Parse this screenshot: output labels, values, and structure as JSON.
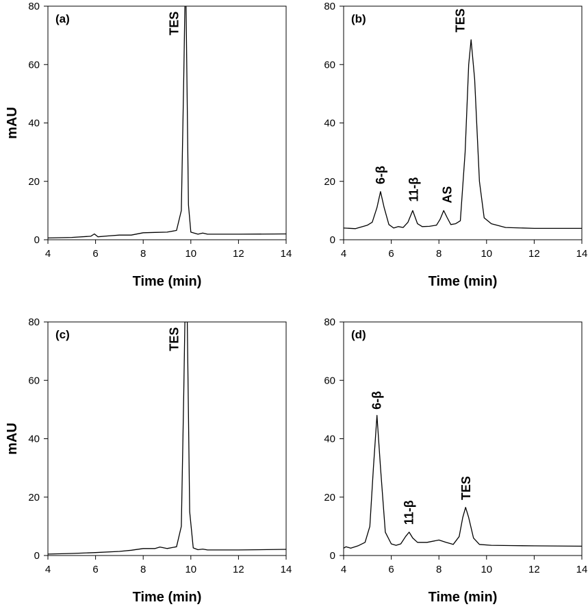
{
  "chart_data": [
    {
      "type": "line",
      "panel_label": "(a)",
      "xlabel": "Time (min)",
      "ylabel": "mAU",
      "xlim": [
        4,
        14
      ],
      "ylim": [
        0,
        80
      ],
      "xticks": [
        4,
        6,
        8,
        10,
        12,
        14
      ],
      "yticks": [
        0,
        20,
        40,
        60,
        80
      ],
      "series": [
        {
          "x": [
            4,
            5,
            5.8,
            5.95,
            6.1,
            6.5,
            7,
            7.5,
            8,
            8.5,
            9,
            9.4,
            9.6,
            9.7,
            9.75,
            9.8,
            9.9,
            10,
            10.3,
            10.5,
            10.7,
            12,
            14
          ],
          "y": [
            0.6,
            0.8,
            1.2,
            2.0,
            1.0,
            1.3,
            1.6,
            1.6,
            2.4,
            2.5,
            2.6,
            3.2,
            10,
            55,
            80,
            80,
            12,
            2.6,
            1.9,
            2.3,
            1.9,
            1.9,
            2.0
          ]
        }
      ],
      "annotations": [
        {
          "text": "TES",
          "x": 9.3,
          "y": 70
        }
      ]
    },
    {
      "type": "line",
      "panel_label": "(b)",
      "xlabel": "Time (min)",
      "ylabel": "",
      "xlim": [
        4,
        14
      ],
      "ylim": [
        0,
        80
      ],
      "xticks": [
        4,
        6,
        8,
        10,
        12,
        14
      ],
      "yticks": [
        0,
        20,
        40,
        60,
        80
      ],
      "series": [
        {
          "x": [
            4,
            4.5,
            5,
            5.2,
            5.4,
            5.55,
            5.7,
            5.9,
            6.1,
            6.3,
            6.5,
            6.7,
            6.9,
            7.1,
            7.3,
            7.6,
            7.9,
            8.05,
            8.2,
            8.35,
            8.5,
            8.7,
            8.9,
            9.1,
            9.25,
            9.35,
            9.5,
            9.7,
            9.9,
            10.2,
            10.8,
            12,
            14
          ],
          "y": [
            4.0,
            3.8,
            5.0,
            6.0,
            11,
            16.5,
            11,
            5.2,
            4.0,
            4.5,
            4.2,
            6.0,
            10,
            5.5,
            4.5,
            4.6,
            5.0,
            7.0,
            10,
            7.5,
            5.2,
            5.5,
            6.5,
            30,
            60,
            68.5,
            55,
            20,
            7.5,
            5.5,
            4.2,
            3.9,
            3.9
          ]
        }
      ],
      "annotations": [
        {
          "text": "6-β",
          "x": 5.55,
          "y": 19
        },
        {
          "text": "11-β",
          "x": 6.95,
          "y": 13
        },
        {
          "text": "AS",
          "x": 8.35,
          "y": 12.5
        },
        {
          "text": "TES",
          "x": 8.9,
          "y": 71
        }
      ]
    },
    {
      "type": "line",
      "panel_label": "(c)",
      "xlabel": "Time (min)",
      "ylabel": "mAU",
      "xlim": [
        4,
        14
      ],
      "ylim": [
        0,
        80
      ],
      "xticks": [
        4,
        6,
        8,
        10,
        12,
        14
      ],
      "yticks": [
        0,
        20,
        40,
        60,
        80
      ],
      "series": [
        {
          "x": [
            4,
            5,
            6,
            7,
            7.5,
            8,
            8.5,
            8.7,
            9,
            9.4,
            9.6,
            9.7,
            9.75,
            9.85,
            9.95,
            10.1,
            10.3,
            10.5,
            10.7,
            12,
            14
          ],
          "y": [
            0.5,
            0.7,
            1.0,
            1.4,
            1.8,
            2.4,
            2.4,
            2.9,
            2.4,
            3.0,
            10,
            55,
            80,
            80,
            15,
            2.6,
            2.0,
            2.2,
            1.9,
            1.9,
            2.1
          ]
        }
      ],
      "annotations": [
        {
          "text": "TES",
          "x": 9.3,
          "y": 70
        }
      ]
    },
    {
      "type": "line",
      "panel_label": "(d)",
      "xlabel": "Time (min)",
      "ylabel": "",
      "xlim": [
        4,
        14
      ],
      "ylim": [
        0,
        80
      ],
      "xticks": [
        4,
        6,
        8,
        10,
        12,
        14
      ],
      "yticks": [
        0,
        20,
        40,
        60,
        80
      ],
      "series": [
        {
          "x": [
            4,
            4.1,
            4.3,
            4.6,
            4.9,
            5.1,
            5.25,
            5.4,
            5.55,
            5.75,
            6.0,
            6.2,
            6.4,
            6.6,
            6.75,
            6.9,
            7.1,
            7.5,
            8.0,
            8.3,
            8.6,
            8.85,
            9.0,
            9.12,
            9.25,
            9.45,
            9.7,
            10.2,
            11,
            12,
            14
          ],
          "y": [
            2.5,
            3.0,
            2.5,
            3.3,
            4.5,
            10,
            30,
            48,
            30,
            8,
            4.0,
            3.5,
            4.0,
            6.5,
            8.0,
            6.0,
            4.5,
            4.5,
            5.3,
            4.5,
            3.8,
            6.5,
            13,
            16.5,
            13,
            6,
            3.8,
            3.5,
            3.4,
            3.3,
            3.2
          ]
        }
      ],
      "annotations": [
        {
          "text": "6-β",
          "x": 5.4,
          "y": 50
        },
        {
          "text": "11-β",
          "x": 6.75,
          "y": 10.5
        },
        {
          "text": "TES",
          "x": 9.15,
          "y": 19
        }
      ]
    }
  ]
}
